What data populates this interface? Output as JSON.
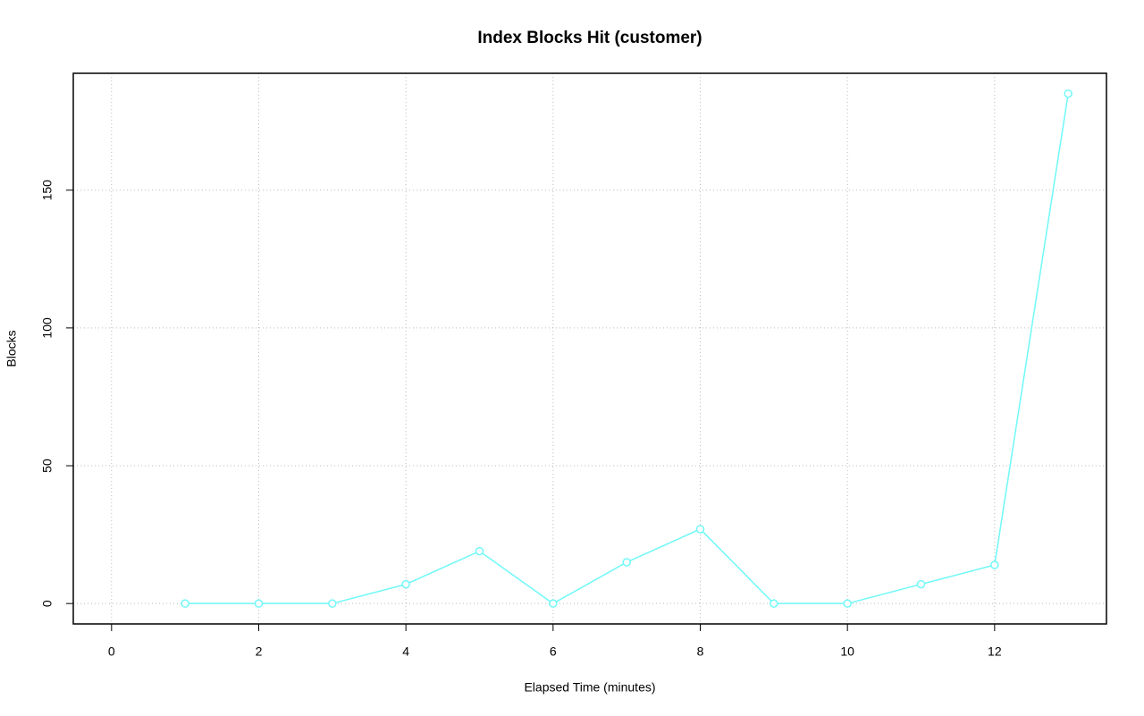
{
  "chart_data": {
    "type": "line",
    "title": "Index Blocks Hit (customer)",
    "x_label": "Elapsed Time (minutes)",
    "y_label": "Blocks",
    "x": [
      1,
      2,
      3,
      4,
      5,
      6,
      7,
      8,
      9,
      10,
      11,
      12,
      13
    ],
    "series": [
      {
        "color": "#70f8f8",
        "values": [
          0,
          0,
          0,
          7,
          19,
          0,
          15,
          27,
          0,
          0,
          7,
          14,
          185
        ]
      }
    ],
    "xlim": [
      -0.52,
      13.52
    ],
    "xticks": [
      0,
      2,
      4,
      6,
      8,
      10,
      12
    ],
    "ylim": [
      -7.4,
      192.4
    ],
    "yticks": [
      0,
      50,
      100,
      150
    ],
    "grid": true
  }
}
